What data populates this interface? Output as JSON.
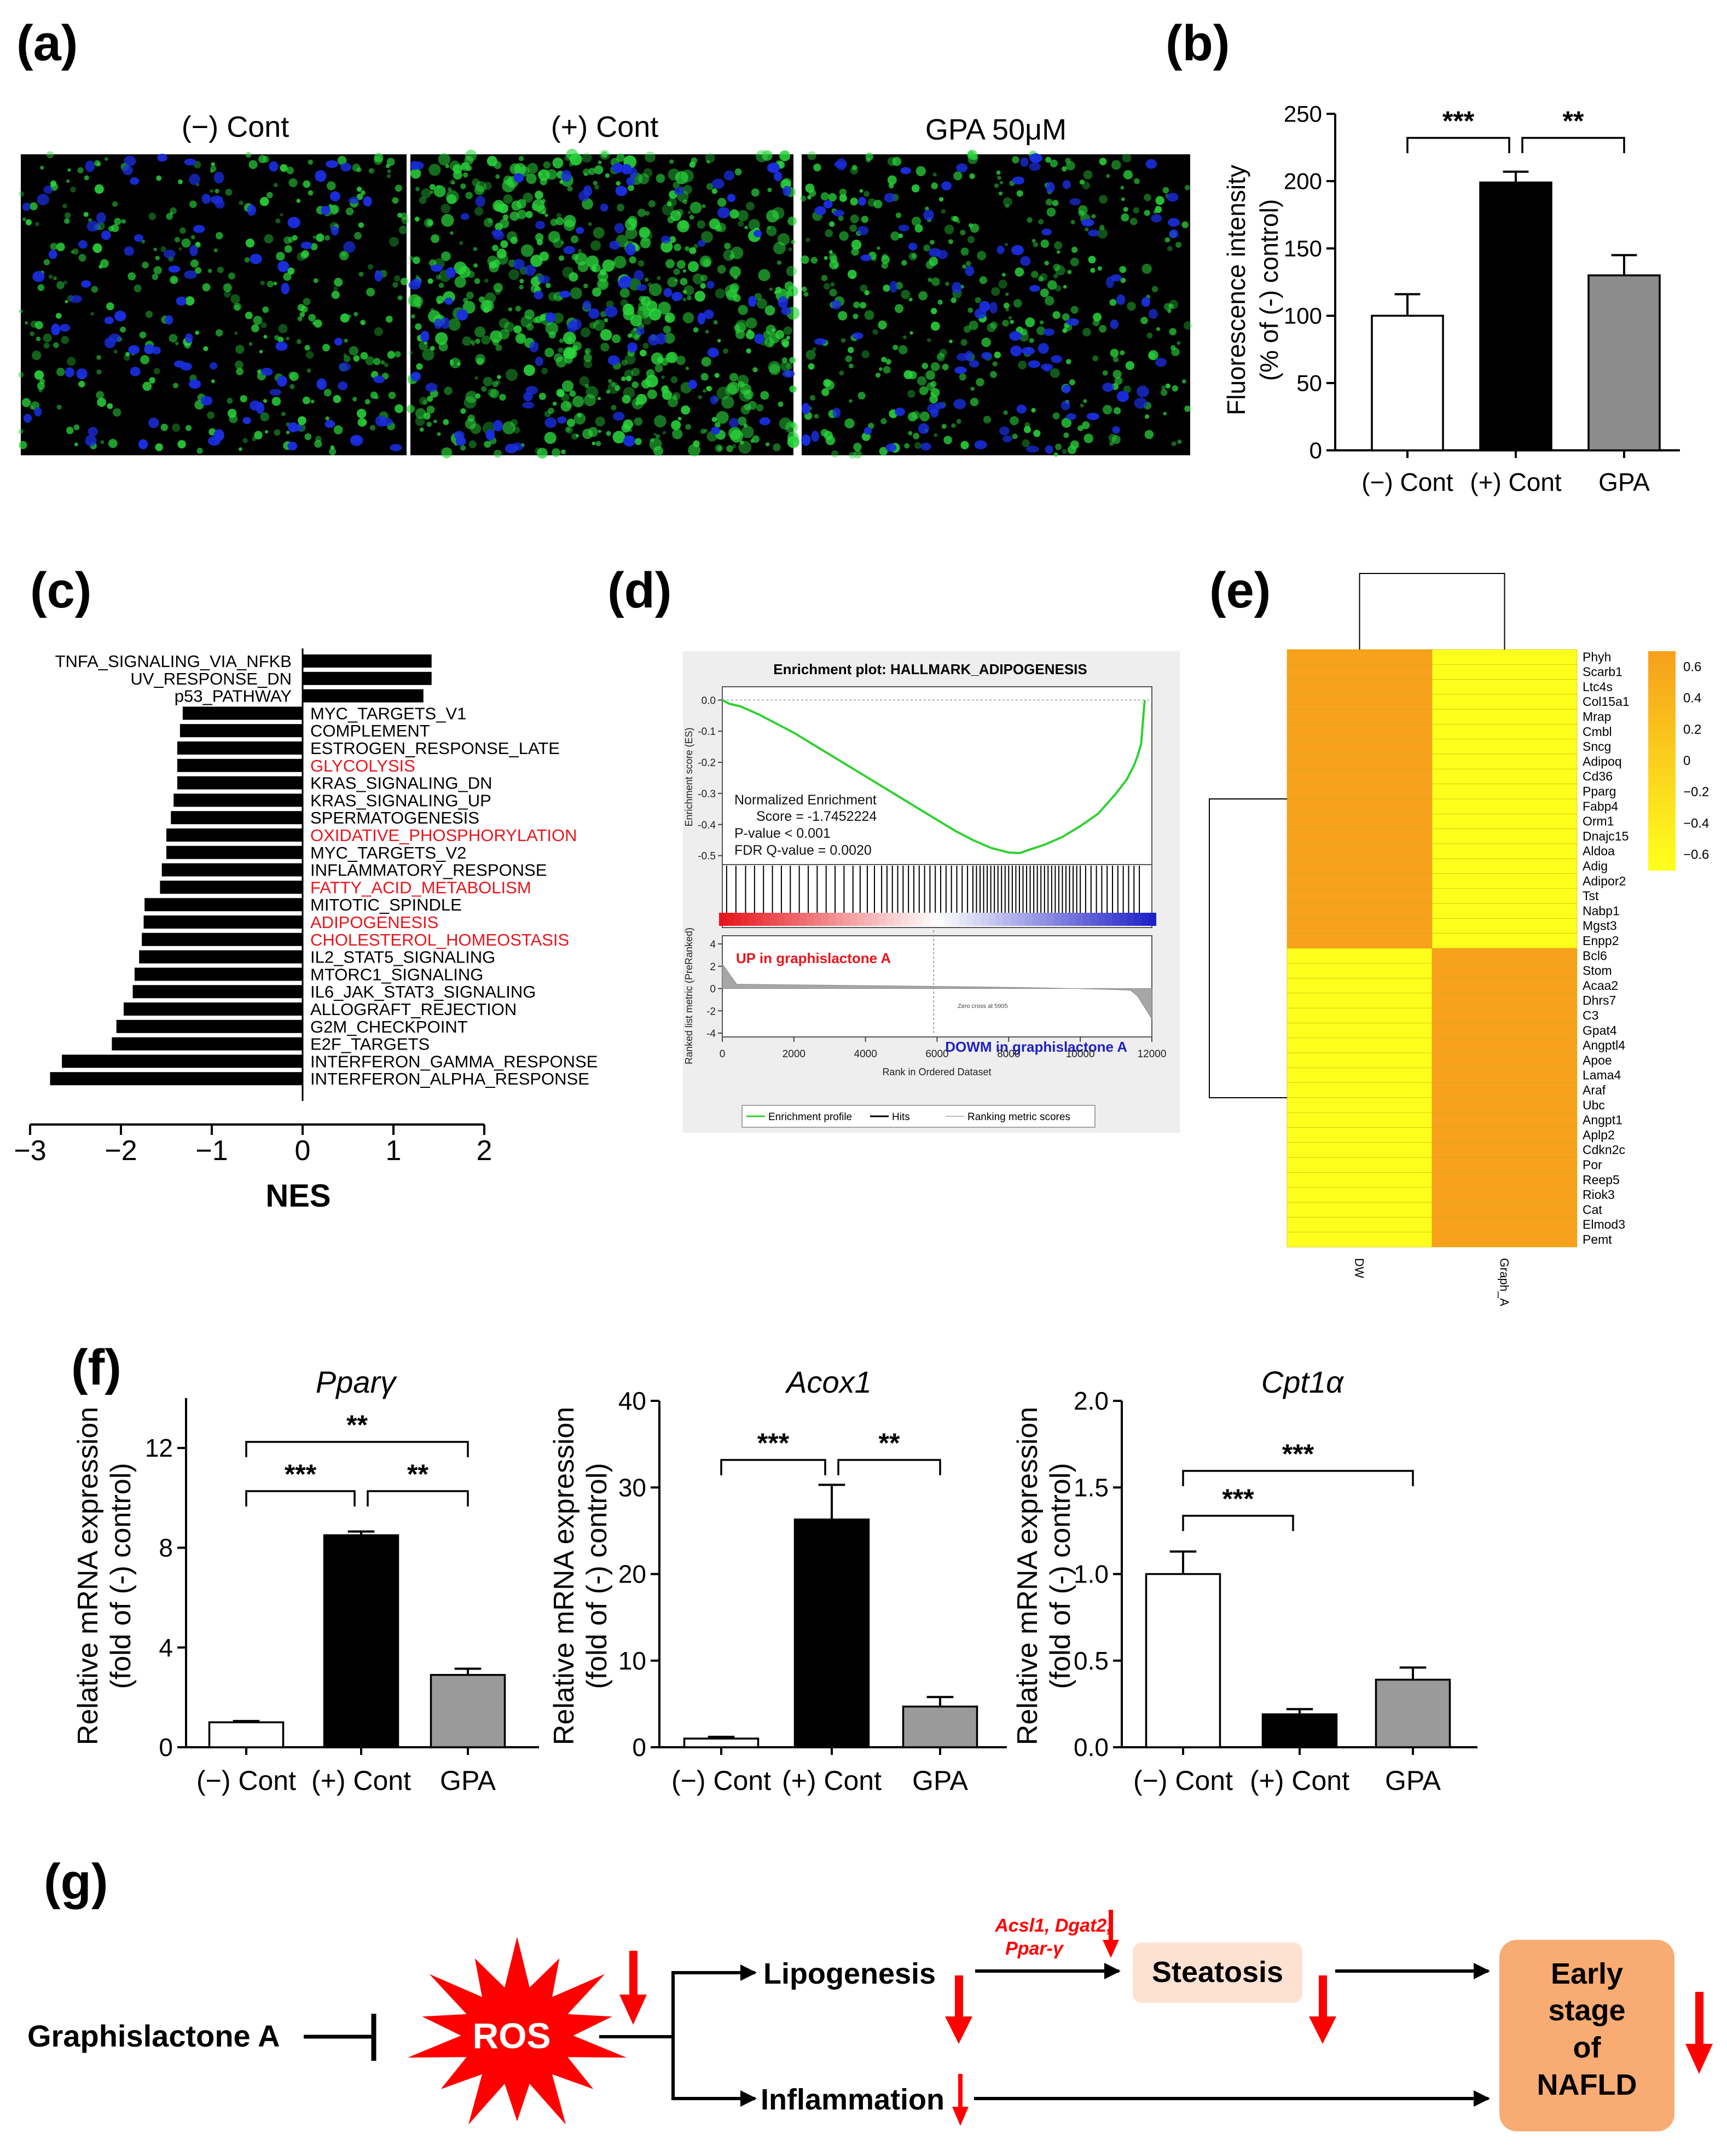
{
  "panel_labels": {
    "a": "(a)",
    "b": "(b)",
    "c": "(c)",
    "d": "(d)",
    "e": "(e)",
    "f": "(f)",
    "g": "(g)"
  },
  "panel_a": {
    "images": [
      {
        "label": "(−) Cont",
        "density": 0.35
      },
      {
        "label": "(+) Cont",
        "density": 1.0
      },
      {
        "label": "GPA  50μM",
        "density": 0.45
      }
    ],
    "colors": {
      "background": "#000000",
      "nuclei": "#1a2ee0",
      "lipid": "#2ad63c"
    }
  },
  "chart_data": [
    {
      "id": "b",
      "type": "bar",
      "ylabel": "Fluorescence intensity",
      "ylabel2": "(% of (-) control)",
      "categories": [
        "(−) Cont",
        "(+) Cont",
        "GPA"
      ],
      "values": [
        100,
        199,
        130
      ],
      "errors": [
        16,
        8,
        15
      ],
      "fills": [
        "#ffffff",
        "#000000",
        "#8c8c8c"
      ],
      "ylim": [
        0,
        250
      ],
      "yticks": [
        0,
        50,
        100,
        150,
        200,
        250
      ],
      "brackets": [
        {
          "from": 0,
          "to": 1,
          "label": "***"
        },
        {
          "from": 1,
          "to": 2,
          "label": "**"
        }
      ]
    },
    {
      "id": "c",
      "type": "bar",
      "orientation": "horizontal",
      "xlabel": "NES",
      "xlim": [
        -3,
        2
      ],
      "xticks": [
        "−3",
        "−2",
        "−1",
        "0",
        "1",
        "2"
      ],
      "xtick_values": [
        -3,
        -2,
        -1,
        0,
        1,
        2
      ],
      "highlight_color": "#e8161d",
      "categories": [
        {
          "name": "TNFA_SIGNALING_VIA_NFKB",
          "value": 1.42,
          "highlight": false
        },
        {
          "name": "UV_RESPONSE_DN",
          "value": 1.42,
          "highlight": false
        },
        {
          "name": "p53_PATHWAY",
          "value": 1.33,
          "highlight": false
        },
        {
          "name": "MYC_TARGETS_V1",
          "value": -1.32,
          "highlight": false
        },
        {
          "name": "COMPLEMENT",
          "value": -1.35,
          "highlight": false
        },
        {
          "name": "ESTROGEN_RESPONSE_LATE",
          "value": -1.38,
          "highlight": false
        },
        {
          "name": "GLYCOLYSIS",
          "value": -1.38,
          "highlight": true
        },
        {
          "name": "KRAS_SIGNALING_DN",
          "value": -1.38,
          "highlight": false
        },
        {
          "name": "KRAS_SIGNALING_UP",
          "value": -1.42,
          "highlight": false
        },
        {
          "name": "SPERMATOGENESIS",
          "value": -1.45,
          "highlight": false
        },
        {
          "name": "OXIDATIVE_PHOSPHORYLATION",
          "value": -1.5,
          "highlight": true
        },
        {
          "name": "MYC_TARGETS_V2",
          "value": -1.5,
          "highlight": false
        },
        {
          "name": "INFLAMMATORY_RESPONSE",
          "value": -1.55,
          "highlight": false
        },
        {
          "name": "FATTY_ACID_METABOLISM",
          "value": -1.57,
          "highlight": true
        },
        {
          "name": "MITOTIC_SPINDLE",
          "value": -1.74,
          "highlight": false
        },
        {
          "name": "ADIPOGENESIS",
          "value": -1.75,
          "highlight": true
        },
        {
          "name": "CHOLESTEROL_HOMEOSTASIS",
          "value": -1.77,
          "highlight": true
        },
        {
          "name": "IL2_STAT5_SIGNALING",
          "value": -1.8,
          "highlight": false
        },
        {
          "name": "MTORC1_SIGNALING",
          "value": -1.85,
          "highlight": false
        },
        {
          "name": "IL6_JAK_STAT3_SIGNALING",
          "value": -1.87,
          "highlight": false
        },
        {
          "name": "ALLOGRAFT_REJECTION",
          "value": -1.97,
          "highlight": false
        },
        {
          "name": "G2M_CHECKPOINT",
          "value": -2.05,
          "highlight": false
        },
        {
          "name": "E2F_TARGETS",
          "value": -2.1,
          "highlight": false
        },
        {
          "name": "INTERFERON_GAMMA_RESPONSE",
          "value": -2.65,
          "highlight": false
        },
        {
          "name": "INTERFERON_ALPHA_RESPONSE",
          "value": -2.78,
          "highlight": false
        }
      ]
    },
    {
      "id": "d",
      "type": "line",
      "title": "Enrichment plot: HALLMARK_ADIPOGENESIS",
      "ylabel": "Enrichment score (ES)",
      "ylabel_lower": "Ranked list metric (PreRanked)",
      "xlabel": "Rank in Ordered Dataset",
      "es_yticks": [
        "0.0",
        "-0.1",
        "-0.2",
        "-0.3",
        "-0.4",
        "-0.5"
      ],
      "es_ytick_values": [
        0,
        -0.1,
        -0.2,
        -0.3,
        -0.4,
        -0.5
      ],
      "metric_yticks": [
        "4",
        "2",
        "0",
        "-2",
        "-4"
      ],
      "metric_ytick_values": [
        4,
        2,
        0,
        -2,
        -4
      ],
      "xticks": [
        "0",
        "2000",
        "4000",
        "6000",
        "8000",
        "10000",
        "12000"
      ],
      "xtick_values": [
        0,
        2000,
        4000,
        6000,
        8000,
        10000,
        12000
      ],
      "xlim": [
        0,
        12000
      ],
      "es_ylim": [
        -0.52,
        0.02
      ],
      "es_curve": {
        "x": [
          0,
          200,
          500,
          1000,
          1500,
          2000,
          2500,
          3000,
          3500,
          4000,
          4500,
          5000,
          5500,
          6000,
          6500,
          7000,
          7500,
          8000,
          8300,
          8600,
          9000,
          9500,
          10000,
          10500,
          11000,
          11300,
          11500,
          11600,
          11700,
          11750,
          11800
        ],
        "y": [
          0,
          -0.012,
          -0.02,
          -0.045,
          -0.075,
          -0.105,
          -0.14,
          -0.175,
          -0.21,
          -0.245,
          -0.28,
          -0.315,
          -0.35,
          -0.385,
          -0.42,
          -0.45,
          -0.475,
          -0.49,
          -0.492,
          -0.48,
          -0.465,
          -0.44,
          -0.405,
          -0.365,
          -0.3,
          -0.255,
          -0.21,
          -0.18,
          -0.14,
          -0.07,
          0
        ]
      },
      "hits": [
        120,
        380,
        650,
        900,
        1150,
        1400,
        1650,
        1900,
        2150,
        2400,
        2650,
        2900,
        3150,
        3400,
        3650,
        3850,
        4050,
        4250,
        4450,
        4600,
        4750,
        4900,
        5050,
        5200,
        5350,
        5500,
        5650,
        5800,
        5950,
        6100,
        6250,
        6400,
        6550,
        6700,
        6850,
        7000,
        7100,
        7200,
        7300,
        7400,
        7500,
        7600,
        7700,
        7800,
        7900,
        8000,
        8100,
        8200,
        8300,
        8400,
        8500,
        8600,
        8700,
        8800,
        8900,
        9000,
        9100,
        9200,
        9300,
        9400,
        9500,
        9600,
        9700,
        9800,
        9900,
        10000,
        10150,
        10300,
        10450,
        10600,
        10750,
        10900,
        11050,
        11200,
        11350,
        11500,
        11650
      ],
      "annotations": {
        "line1": "Normalized Enrichment",
        "line2": "Score = -1.7452224",
        "line3": "P-value < 0.001",
        "line4": "FDR Q-value = 0.0020",
        "up": "UP in graphislactone A",
        "down": "DOWM in graphislactone A",
        "zero_cross": "Zero cross at 5905"
      },
      "zero_cross_x": 5905,
      "legend": [
        "Enrichment profile",
        "Hits",
        "Ranking metric scores"
      ],
      "colors": {
        "curve": "#2fd12f",
        "up": "#e8161d",
        "down": "#1f21c8",
        "metric": "#a7a7a7"
      }
    },
    {
      "id": "e",
      "type": "heatmap",
      "columns": [
        "DW",
        "Graph_A"
      ],
      "rows": [
        "Phyh",
        "Scarb1",
        "Ltc4s",
        "Col15a1",
        "Mrap",
        "Cmbl",
        "Sncg",
        "Adipoq",
        "Cd36",
        "Pparg",
        "Fabp4",
        "Orm1",
        "Dnajc15",
        "Aldoa",
        "Adig",
        "Adipor2",
        "Tst",
        "Nabp1",
        "Mgst3",
        "Enpp2",
        "Bcl6",
        "Stom",
        "Acaa2",
        "Dhrs7",
        "C3",
        "Gpat4",
        "Angptl4",
        "Apoe",
        "Lama4",
        "Araf",
        "Ubc",
        "Angpt1",
        "Aplp2",
        "Cdkn2c",
        "Por",
        "Reep5",
        "Riok3",
        "Cat",
        "Elmod3",
        "Pemt"
      ],
      "top_group_size": 20,
      "values_top": [
        0.65,
        -0.65
      ],
      "values_bottom": [
        -0.65,
        0.65
      ],
      "colorbar_ticks": [
        "0.6",
        "0.4",
        "0.2",
        "0",
        "−0.2",
        "−0.4",
        "−0.6"
      ],
      "colorbar_tick_values": [
        0.6,
        0.4,
        0.2,
        0,
        -0.2,
        -0.4,
        -0.6
      ],
      "colorbar_range": [
        -0.7,
        0.7
      ],
      "colors": {
        "high": "#f7a11c",
        "low": "#ffff1e"
      }
    },
    {
      "id": "f1",
      "type": "bar",
      "title": "Pparγ",
      "ylabel": "Relative mRNA expression",
      "ylabel2": "(fold of (-) control)",
      "categories": [
        "(−) Cont",
        "(+) Cont",
        "GPA"
      ],
      "values": [
        1.0,
        8.5,
        2.9
      ],
      "errors": [
        0.05,
        0.15,
        0.25
      ],
      "fills": [
        "#ffffff",
        "#000000",
        "#9a9a9a"
      ],
      "ylim": [
        0,
        14
      ],
      "yticks": [
        "0",
        "4",
        "8",
        "12"
      ],
      "ytick_values": [
        0,
        4,
        8,
        12
      ],
      "brackets": [
        {
          "from": 0,
          "to": 1,
          "label": "***",
          "level": 0
        },
        {
          "from": 1,
          "to": 2,
          "label": "**",
          "level": 0
        },
        {
          "from": 0,
          "to": 2,
          "label": "**",
          "level": 1
        }
      ]
    },
    {
      "id": "f2",
      "type": "bar",
      "title": "Acox1",
      "ylabel": "Relative mRNA expression",
      "ylabel2": "(fold of (-) control)",
      "categories": [
        "(−) Cont",
        "(+) Cont",
        "GPA"
      ],
      "values": [
        1.0,
        26.3,
        4.7
      ],
      "errors": [
        0.2,
        4.0,
        1.1
      ],
      "fills": [
        "#ffffff",
        "#000000",
        "#9a9a9a"
      ],
      "ylim": [
        0,
        40
      ],
      "yticks": [
        "0",
        "10",
        "20",
        "30",
        "40"
      ],
      "ytick_values": [
        0,
        10,
        20,
        30,
        40
      ],
      "brackets": [
        {
          "from": 0,
          "to": 1,
          "label": "***",
          "level": 0
        },
        {
          "from": 1,
          "to": 2,
          "label": "**",
          "level": 0
        }
      ]
    },
    {
      "id": "f3",
      "type": "bar",
      "title": "Cpt1α",
      "ylabel": "Relative mRNA expression",
      "ylabel2": "(fold of (-) control)",
      "categories": [
        "(−) Cont",
        "(+) Cont",
        "GPA"
      ],
      "values": [
        1.0,
        0.19,
        0.39
      ],
      "errors": [
        0.13,
        0.03,
        0.07
      ],
      "fills": [
        "#ffffff",
        "#000000",
        "#9a9a9a"
      ],
      "ylim": [
        0,
        2.0
      ],
      "yticks": [
        "0.0",
        "0.5",
        "1.0",
        "1.5",
        "2.0"
      ],
      "ytick_values": [
        0,
        0.5,
        1.0,
        1.5,
        2.0
      ],
      "brackets": [
        {
          "from": 0,
          "to": 1,
          "label": "***",
          "level": 0
        },
        {
          "from": 0,
          "to": 2,
          "label": "***",
          "level": 1
        }
      ]
    }
  ],
  "panel_g": {
    "compound": "Graphislactone A",
    "ros": "ROS",
    "lipogenesis": "Lipogenesis",
    "inflammation": "Inflammation",
    "genes": "Acsl1, Dgat2,",
    "genes2": "Ppar-γ",
    "steatosis": "Steatosis",
    "nafld1": "Early",
    "nafld2": "stage",
    "nafld3": "of",
    "nafld4": "NAFLD",
    "colors": {
      "ros": "#ff0000",
      "arrow": "#ff0000",
      "steatosis_box": "#fde2d2",
      "nafld_box": "#f8ab72"
    }
  }
}
